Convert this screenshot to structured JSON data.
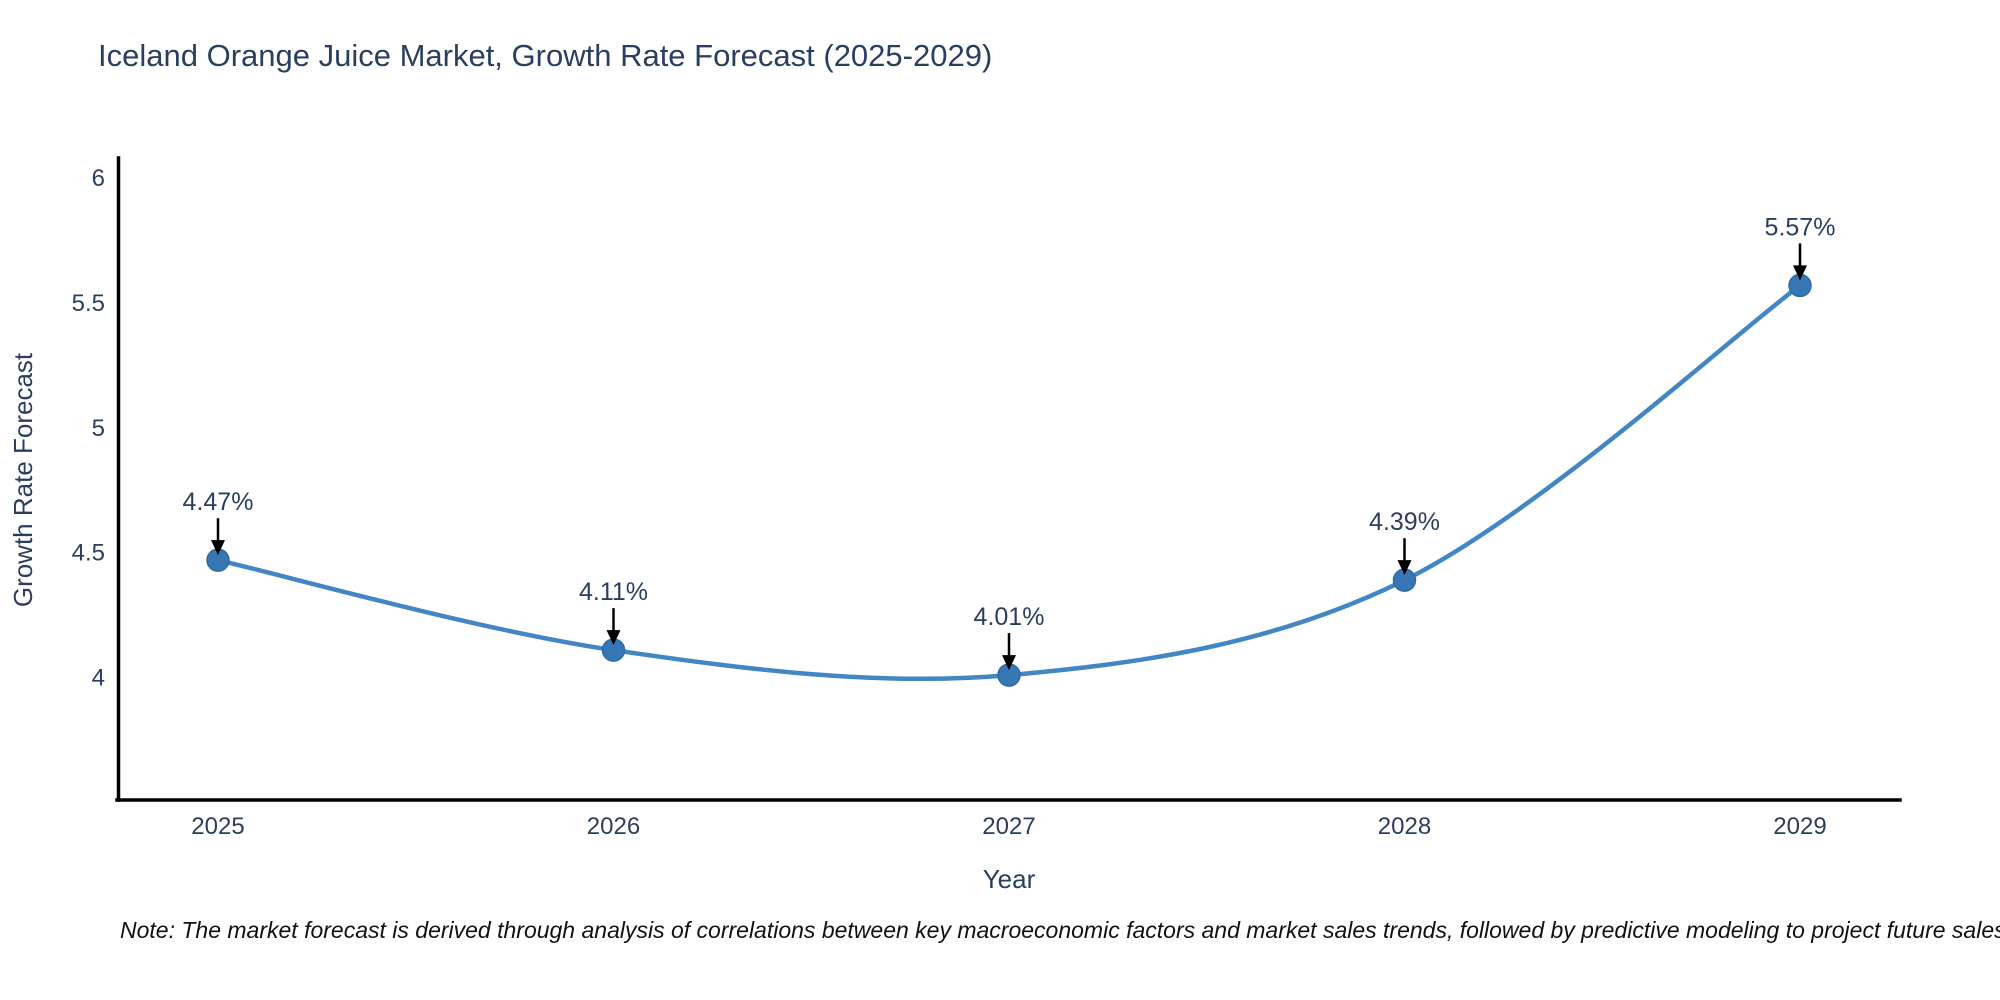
{
  "chart_data": {
    "type": "line",
    "title": "Iceland Orange Juice Market, Growth Rate Forecast (2025-2029)",
    "xlabel": "Year",
    "ylabel": "Growth Rate Forecast",
    "categories": [
      "2025",
      "2026",
      "2027",
      "2028",
      "2029"
    ],
    "values": [
      4.47,
      4.11,
      4.01,
      4.39,
      5.57
    ],
    "point_labels": [
      "4.47%",
      "4.11%",
      "4.01%",
      "4.39%",
      "5.57%"
    ],
    "y_ticks": [
      6,
      5.5,
      5,
      4.5,
      4
    ],
    "ylim": [
      3.51,
      6.08
    ],
    "grid": false,
    "legend": "none",
    "line_shape": "spline",
    "colors": {
      "line": "#4286c4",
      "marker": "#3777b5",
      "marker_edge": "#2f6ba3",
      "axis": "#000000",
      "text": "#2a3f5f",
      "annotation": "#2f3b4c",
      "arrow": "#000000",
      "background": "#ffffff"
    }
  },
  "footnote": "Note: The market forecast is derived through analysis of correlations between key macroeconomic factors and market sales trends, followed by predictive modeling to project future sales"
}
